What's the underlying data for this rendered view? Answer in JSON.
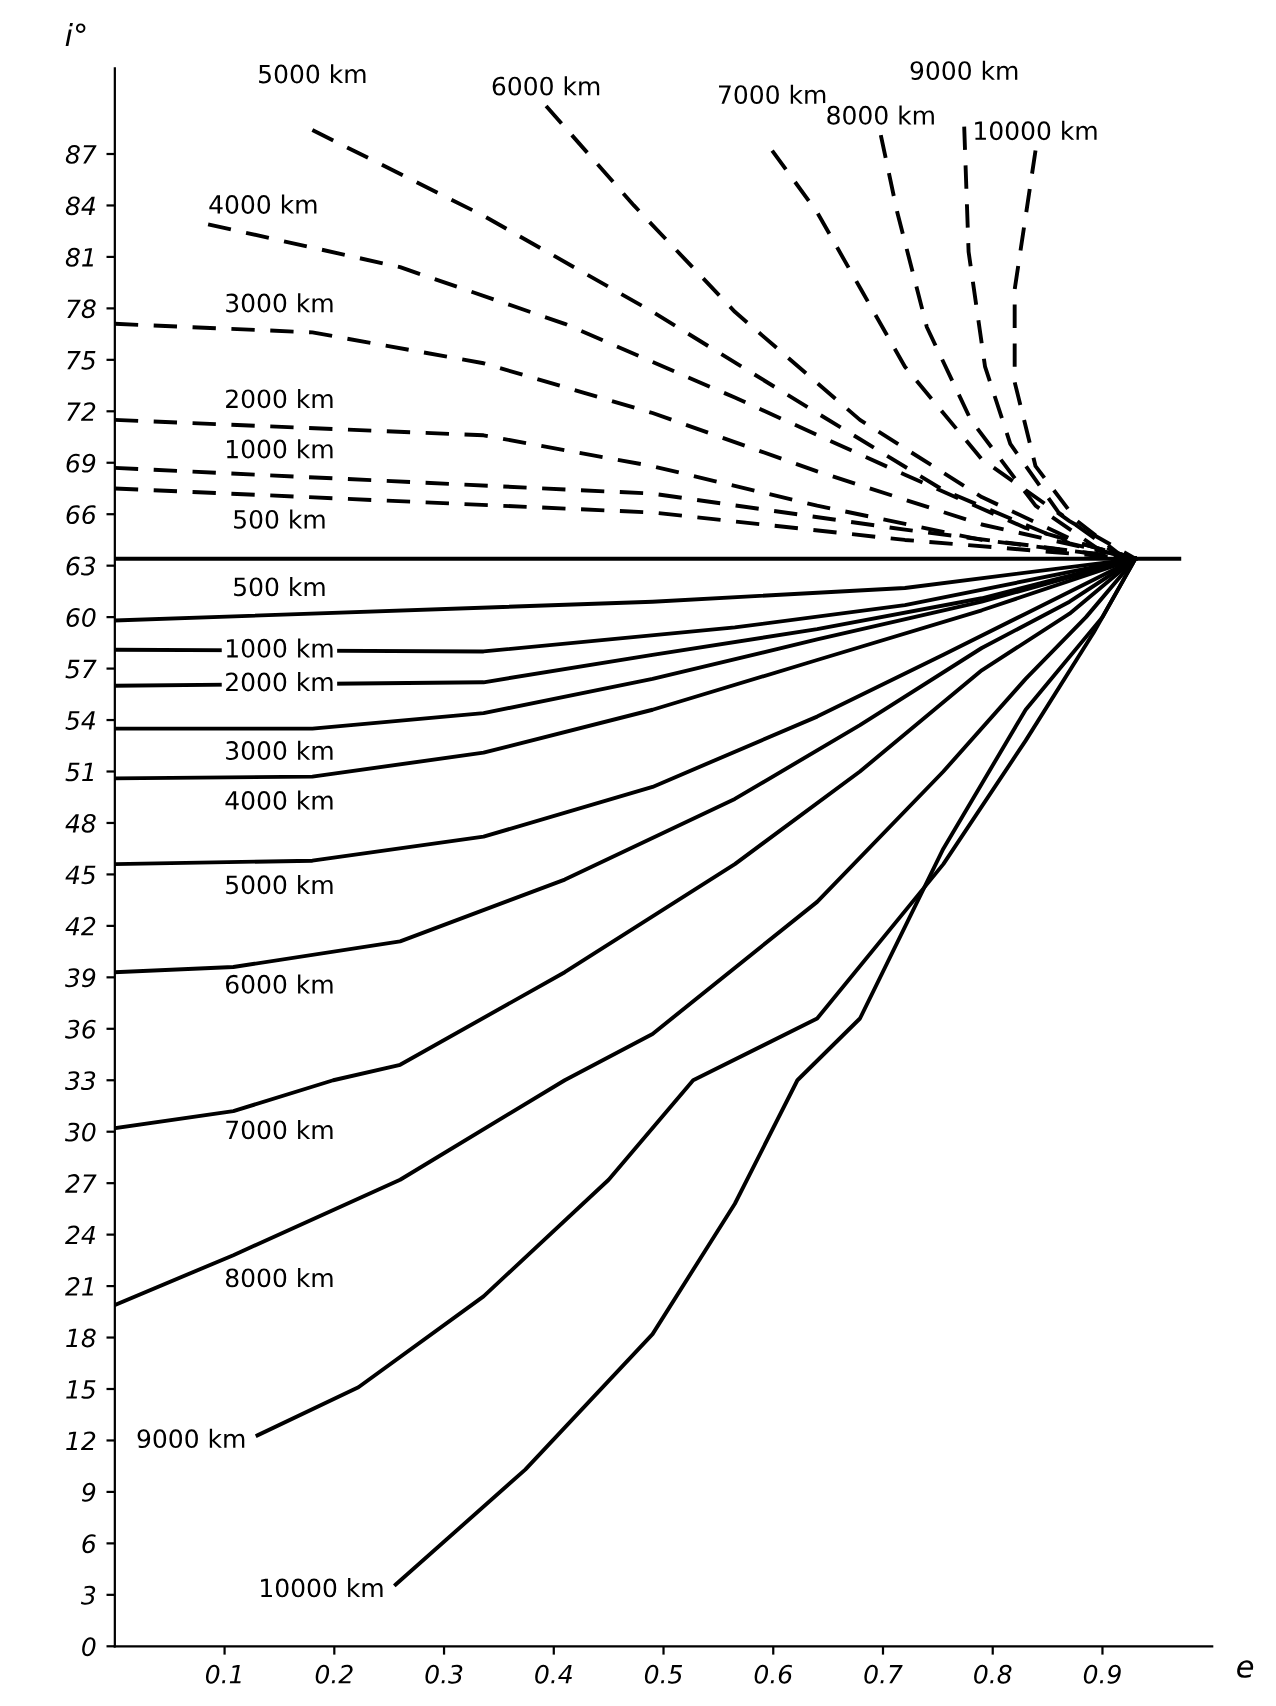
{
  "chart_data": {
    "type": "line",
    "xlabel": "e",
    "ylabel": "i°",
    "xlim": [
      0,
      1
    ],
    "ylim": [
      0,
      92
    ],
    "xticks": [
      0.1,
      0.2,
      0.3,
      0.4,
      0.5,
      0.6,
      0.7,
      0.8,
      0.9
    ],
    "yticks": [
      0,
      3,
      6,
      9,
      12,
      15,
      18,
      21,
      24,
      27,
      30,
      33,
      36,
      39,
      42,
      45,
      48,
      51,
      54,
      57,
      60,
      63,
      66,
      69,
      72,
      75,
      78,
      81,
      84,
      87
    ],
    "grid": false,
    "marker": "none",
    "series": [
      {
        "name": "500 km",
        "color": "#000000",
        "line_style": "dashed",
        "x": [
          0,
          0.49,
          0.72,
          0.93
        ],
        "values": [
          67.5,
          66.1,
          64.5,
          63.4
        ]
      },
      {
        "name": "1000 km",
        "color": "#000000",
        "line_style": "dashed",
        "x": [
          0,
          0.49,
          0.72,
          0.93
        ],
        "values": [
          68.7,
          67.2,
          65.1,
          63.4
        ]
      },
      {
        "name": "2000 km",
        "color": "#000000",
        "line_style": "dashed",
        "x": [
          0,
          0.336,
          0.49,
          0.64,
          0.79,
          0.93
        ],
        "values": [
          71.5,
          70.6,
          68.8,
          66.5,
          64.5,
          63.4
        ]
      },
      {
        "name": "3000 km",
        "color": "#000000",
        "line_style": "dashed",
        "x": [
          0,
          0.18,
          0.336,
          0.49,
          0.64,
          0.79,
          0.93
        ],
        "values": [
          77.1,
          76.6,
          74.8,
          71.9,
          68.5,
          65.4,
          63.4
        ]
      },
      {
        "name": "4000 km",
        "color": "#000000",
        "line_style": "dashed",
        "x": [
          0.085,
          0.26,
          0.41,
          0.565,
          0.72,
          0.83,
          0.93
        ],
        "values": [
          82.9,
          80.4,
          77.1,
          72.8,
          68.3,
          65.2,
          63.4
        ]
      },
      {
        "name": "5000 km",
        "color": "#000000",
        "line_style": "dashed",
        "x": [
          0.18,
          0.336,
          0.49,
          0.64,
          0.755,
          0.87,
          0.93
        ],
        "values": [
          88.4,
          83.4,
          77.8,
          71.9,
          67.4,
          64.3,
          63.4
        ]
      },
      {
        "name": "6000 km",
        "color": "#000000",
        "line_style": "dashed",
        "x": [
          0.393,
          0.473,
          0.565,
          0.679,
          0.79,
          0.88,
          0.93
        ],
        "values": [
          89.8,
          84.0,
          77.8,
          71.5,
          67.0,
          64.3,
          63.4
        ]
      },
      {
        "name": "7000 km",
        "color": "#000000",
        "line_style": "dashed",
        "x": [
          0.599,
          0.64,
          0.68,
          0.72,
          0.79,
          0.87,
          0.93
        ],
        "values": [
          87.2,
          83.6,
          79.1,
          74.6,
          69.2,
          65.6,
          63.4
        ]
      },
      {
        "name": "8000 km",
        "color": "#000000",
        "line_style": "dashed",
        "x": [
          0.698,
          0.713,
          0.74,
          0.78,
          0.839,
          0.9,
          0.93
        ],
        "values": [
          88.1,
          83.6,
          76.9,
          71.5,
          66.5,
          63.8,
          63.4
        ]
      },
      {
        "name": "9000 km",
        "color": "#000000",
        "line_style": "dashed",
        "x": [
          0.774,
          0.778,
          0.793,
          0.816,
          0.86,
          0.91,
          0.93
        ],
        "values": [
          88.6,
          81.3,
          74.6,
          70.1,
          66.1,
          63.8,
          63.4
        ]
      },
      {
        "name": "10000 km",
        "color": "#000000",
        "line_style": "dashed",
        "x": [
          0.839,
          0.82,
          0.82,
          0.839,
          0.877,
          0.915,
          0.93
        ],
        "values": [
          87.2,
          79.1,
          73.7,
          68.8,
          65.6,
          63.7,
          63.4
        ]
      },
      {
        "color": "#000000",
        "line_style": "solid",
        "x": [
          0,
          0.97
        ],
        "values": [
          63.4,
          63.4
        ]
      },
      {
        "name": "500 km",
        "color": "#000000",
        "line_style": "solid",
        "x": [
          0,
          0.49,
          0.72,
          0.93
        ],
        "values": [
          59.8,
          60.9,
          61.7,
          63.4
        ]
      },
      {
        "name": "1000 km",
        "color": "#000000",
        "line_style": "solid",
        "x": [
          0,
          0.336,
          0.565,
          0.72,
          0.93
        ],
        "values": [
          58.1,
          58.0,
          59.4,
          60.7,
          63.4
        ]
      },
      {
        "name": "2000 km",
        "color": "#000000",
        "line_style": "solid",
        "x": [
          0,
          0.336,
          0.49,
          0.64,
          0.79,
          0.93
        ],
        "values": [
          56.0,
          56.2,
          57.8,
          59.3,
          61.1,
          63.4
        ]
      },
      {
        "name": "3000 km",
        "color": "#000000",
        "line_style": "solid",
        "x": [
          0,
          0.18,
          0.336,
          0.49,
          0.64,
          0.79,
          0.93
        ],
        "values": [
          53.5,
          53.5,
          54.4,
          56.4,
          58.7,
          60.9,
          63.4
        ]
      },
      {
        "name": "4000 km",
        "color": "#000000",
        "line_style": "solid",
        "x": [
          0,
          0.18,
          0.336,
          0.49,
          0.64,
          0.79,
          0.93
        ],
        "values": [
          50.6,
          50.7,
          52.1,
          54.6,
          57.5,
          60.4,
          63.4
        ]
      },
      {
        "name": "5000 km",
        "color": "#000000",
        "line_style": "solid",
        "x": [
          0,
          0.18,
          0.336,
          0.49,
          0.64,
          0.755,
          0.83,
          0.93
        ],
        "values": [
          45.6,
          45.8,
          47.2,
          50.1,
          54.2,
          57.8,
          60.2,
          63.4
        ]
      },
      {
        "name": "6000 km",
        "color": "#000000",
        "line_style": "solid",
        "x": [
          0,
          0.108,
          0.26,
          0.41,
          0.565,
          0.679,
          0.79,
          0.87,
          0.93
        ],
        "values": [
          39.3,
          39.6,
          41.1,
          44.7,
          49.4,
          53.7,
          58.2,
          60.9,
          63.4
        ]
      },
      {
        "name": "7000 km",
        "color": "#000000",
        "line_style": "solid",
        "x": [
          0,
          0.108,
          0.199,
          0.26,
          0.41,
          0.565,
          0.679,
          0.79,
          0.87,
          0.93
        ],
        "values": [
          30.2,
          31.2,
          33.0,
          33.9,
          39.3,
          45.6,
          51.0,
          56.9,
          60.2,
          63.4
        ]
      },
      {
        "name": "8000 km",
        "color": "#000000",
        "line_style": "solid",
        "x": [
          0,
          0.108,
          0.26,
          0.41,
          0.49,
          0.64,
          0.755,
          0.83,
          0.885,
          0.93
        ],
        "values": [
          19.9,
          22.8,
          27.2,
          33.0,
          35.7,
          43.4,
          51.0,
          56.4,
          60.0,
          63.4
        ]
      },
      {
        "name": "9000 km",
        "color": "#000000",
        "line_style": "solid",
        "x": [
          0.13,
          0.222,
          0.336,
          0.45,
          0.527,
          0.64,
          0.755,
          0.83,
          0.892,
          0.93
        ],
        "values": [
          12.3,
          15.1,
          20.4,
          27.2,
          33.0,
          36.6,
          45.6,
          52.8,
          59.1,
          63.4
        ]
      },
      {
        "name": "10000 km",
        "color": "#000000",
        "line_style": "solid",
        "x": [
          0.256,
          0.374,
          0.49,
          0.565,
          0.622,
          0.679,
          0.755,
          0.83,
          0.9,
          0.93
        ],
        "values": [
          3.6,
          10.3,
          18.2,
          25.8,
          33.0,
          36.6,
          46.5,
          54.6,
          60.0,
          63.4
        ]
      }
    ]
  }
}
